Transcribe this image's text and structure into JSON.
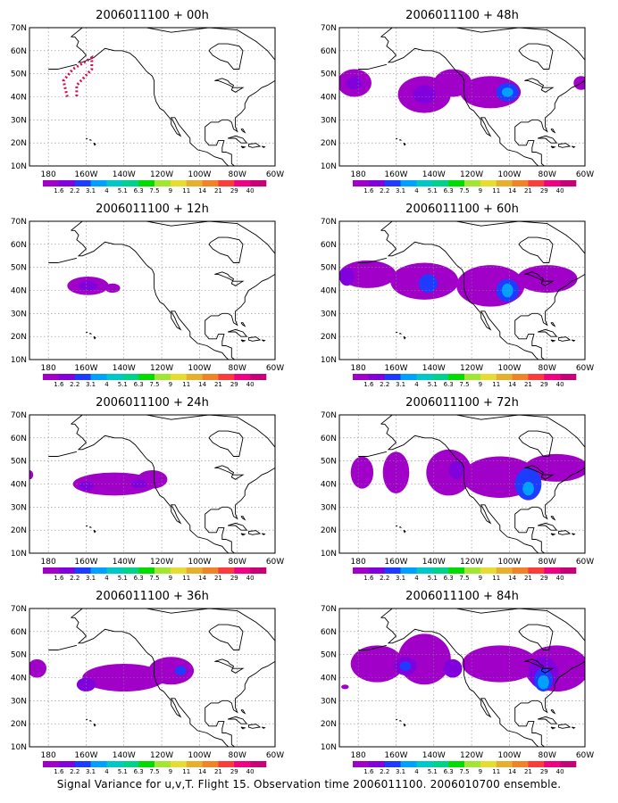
{
  "caption": "Signal Variance for u,v,T. Flight 15. Observation time 2006011100. 2006010700 ensemble.",
  "lon_ticks": [
    "180",
    "160W",
    "140W",
    "120W",
    "100W",
    "80W",
    "60W"
  ],
  "lat_ticks": [
    "70N",
    "60N",
    "50N",
    "40N",
    "30N",
    "20N",
    "10N"
  ],
  "map_extent": {
    "lon_min": -190,
    "lon_max": -60,
    "lat_min": 10,
    "lat_max": 70
  },
  "colorbar": {
    "labels": [
      "1.6",
      "2.2",
      "3.1",
      "4",
      "5.1",
      "6.3",
      "7.5",
      "9",
      "11",
      "14",
      "21",
      "29",
      "40"
    ],
    "colors": [
      "#a000c8",
      "#8200dc",
      "#1e3cff",
      "#00a0ff",
      "#00c8c8",
      "#00d28c",
      "#00dc00",
      "#a0e632",
      "#e6dc32",
      "#e6af2d",
      "#f08228",
      "#fa3c3c",
      "#f00082",
      "#c80078"
    ]
  },
  "contour_colors": {
    "lvl1": "#a000c8",
    "lvl2": "#8200dc",
    "lvl3": "#1e3cff",
    "lvl4": "#00a0ff",
    "lvl5": "#00c8c8"
  },
  "panels": [
    {
      "title": "2006011100 + 00h",
      "track": [
        [
          -170,
          40
        ],
        [
          -172,
          47
        ],
        [
          -167,
          52
        ],
        [
          -157,
          57
        ],
        [
          -157,
          52
        ],
        [
          -165,
          45
        ],
        [
          -165,
          40
        ]
      ],
      "blobs": []
    },
    {
      "title": "2006011100 + 48h",
      "blobs": [
        {
          "lon": -182,
          "lat": 46,
          "rlon": 9,
          "rlat": 6,
          "lvl": 1
        },
        {
          "lon": -182,
          "lat": 46,
          "rlon": 4,
          "rlat": 3,
          "lvl": 2
        },
        {
          "lon": -145,
          "lat": 41,
          "rlon": 14,
          "rlat": 8,
          "lvl": 1
        },
        {
          "lon": -130,
          "lat": 46,
          "rlon": 10,
          "rlat": 6,
          "lvl": 1
        },
        {
          "lon": -110,
          "lat": 42,
          "rlon": 16,
          "rlat": 7,
          "lvl": 1
        },
        {
          "lon": -145,
          "lat": 41,
          "rlon": 6,
          "rlat": 4,
          "lvl": 2
        },
        {
          "lon": -101,
          "lat": 42,
          "rlon": 6,
          "rlat": 4,
          "lvl": 3
        },
        {
          "lon": -101,
          "lat": 42,
          "rlon": 3,
          "rlat": 2,
          "lvl": 4
        },
        {
          "lon": -62,
          "lat": 46,
          "rlon": 4,
          "rlat": 3,
          "lvl": 1
        }
      ]
    },
    {
      "title": "2006011100 + 12h",
      "blobs": [
        {
          "lon": -159,
          "lat": 42,
          "rlon": 11,
          "rlat": 4,
          "lvl": 1
        },
        {
          "lon": -159,
          "lat": 42,
          "rlon": 5,
          "rlat": 2,
          "lvl": 2
        },
        {
          "lon": -146,
          "lat": 41,
          "rlon": 4,
          "rlat": 2,
          "lvl": 1
        }
      ]
    },
    {
      "title": "2006011100 + 60h",
      "blobs": [
        {
          "lon": -175,
          "lat": 47,
          "rlon": 15,
          "rlat": 6,
          "lvl": 1
        },
        {
          "lon": -145,
          "lat": 44,
          "rlon": 18,
          "rlat": 8,
          "lvl": 1
        },
        {
          "lon": -110,
          "lat": 42,
          "rlon": 18,
          "rlat": 9,
          "lvl": 1
        },
        {
          "lon": -80,
          "lat": 45,
          "rlon": 16,
          "rlat": 6,
          "lvl": 1
        },
        {
          "lon": -143,
          "lat": 43,
          "rlon": 5,
          "rlat": 4,
          "lvl": 3
        },
        {
          "lon": -101,
          "lat": 40,
          "rlon": 6,
          "rlat": 5,
          "lvl": 3
        },
        {
          "lon": -101,
          "lat": 40,
          "rlon": 3,
          "rlat": 3,
          "lvl": 4
        },
        {
          "lon": -186,
          "lat": 46,
          "rlon": 4,
          "rlat": 4,
          "lvl": 2
        }
      ]
    },
    {
      "title": "2006011100 + 24h",
      "blobs": [
        {
          "lon": -145,
          "lat": 40,
          "rlon": 22,
          "rlat": 5,
          "lvl": 1
        },
        {
          "lon": -125,
          "lat": 42,
          "rlon": 8,
          "rlat": 4,
          "lvl": 1
        },
        {
          "lon": -160,
          "lat": 39,
          "rlon": 4,
          "rlat": 2,
          "lvl": 2
        },
        {
          "lon": -132,
          "lat": 40,
          "rlon": 4,
          "rlat": 2,
          "lvl": 2
        },
        {
          "lon": -190,
          "lat": 44,
          "rlon": 2,
          "rlat": 2,
          "lvl": 1
        }
      ]
    },
    {
      "title": "2006011100 + 72h",
      "blobs": [
        {
          "lon": -178,
          "lat": 45,
          "rlon": 6,
          "rlat": 7,
          "lvl": 1
        },
        {
          "lon": -160,
          "lat": 45,
          "rlon": 7,
          "rlat": 9,
          "lvl": 1
        },
        {
          "lon": -132,
          "lat": 45,
          "rlon": 12,
          "rlat": 10,
          "lvl": 1
        },
        {
          "lon": -105,
          "lat": 43,
          "rlon": 20,
          "rlat": 9,
          "lvl": 1
        },
        {
          "lon": -75,
          "lat": 47,
          "rlon": 17,
          "rlat": 6,
          "lvl": 1
        },
        {
          "lon": -128,
          "lat": 46,
          "rlon": 4,
          "rlat": 4,
          "lvl": 2
        },
        {
          "lon": -90,
          "lat": 40,
          "rlon": 7,
          "rlat": 7,
          "lvl": 3
        },
        {
          "lon": -90,
          "lat": 38,
          "rlon": 3,
          "rlat": 3,
          "lvl": 4
        }
      ]
    },
    {
      "title": "2006011100 + 36h",
      "blobs": [
        {
          "lon": -186,
          "lat": 44,
          "rlon": 5,
          "rlat": 4,
          "lvl": 1
        },
        {
          "lon": -140,
          "lat": 40,
          "rlon": 22,
          "rlat": 6,
          "lvl": 1
        },
        {
          "lon": -115,
          "lat": 43,
          "rlon": 12,
          "rlat": 6,
          "lvl": 1
        },
        {
          "lon": -160,
          "lat": 37,
          "rlon": 5,
          "rlat": 3,
          "lvl": 2
        },
        {
          "lon": -110,
          "lat": 43,
          "rlon": 3,
          "rlat": 2,
          "lvl": 3
        }
      ]
    },
    {
      "title": "2006011100 + 84h",
      "blobs": [
        {
          "lon": -170,
          "lat": 46,
          "rlon": 14,
          "rlat": 8,
          "lvl": 1
        },
        {
          "lon": -145,
          "lat": 48,
          "rlon": 14,
          "rlat": 11,
          "lvl": 1
        },
        {
          "lon": -105,
          "lat": 46,
          "rlon": 20,
          "rlat": 8,
          "lvl": 1
        },
        {
          "lon": -75,
          "lat": 44,
          "rlon": 17,
          "rlat": 10,
          "lvl": 1
        },
        {
          "lon": -155,
          "lat": 45,
          "rlon": 6,
          "rlat": 4,
          "lvl": 2
        },
        {
          "lon": -130,
          "lat": 44,
          "rlon": 5,
          "rlat": 4,
          "lvl": 2
        },
        {
          "lon": -82,
          "lat": 42,
          "rlon": 8,
          "rlat": 7,
          "lvl": 2
        },
        {
          "lon": -155,
          "lat": 45,
          "rlon": 3,
          "rlat": 2,
          "lvl": 3
        },
        {
          "lon": -82,
          "lat": 39,
          "rlon": 5,
          "rlat": 5,
          "lvl": 3
        },
        {
          "lon": -82,
          "lat": 38,
          "rlon": 3,
          "rlat": 3,
          "lvl": 4
        },
        {
          "lon": -187,
          "lat": 36,
          "rlon": 2,
          "rlat": 1,
          "lvl": 1
        }
      ]
    }
  ]
}
